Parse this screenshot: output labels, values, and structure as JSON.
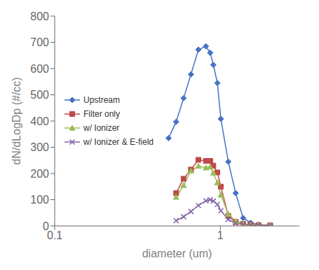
{
  "chart_data": {
    "type": "line",
    "xlabel": "diameter (um)",
    "ylabel": "dN/dLogDp (#/cc)",
    "log": "x",
    "xlim": [
      0.1,
      3.0
    ],
    "xticks": [
      0.1,
      1
    ],
    "ylim": [
      0,
      800
    ],
    "yticks": [
      0,
      100,
      200,
      300,
      400,
      500,
      600,
      700,
      800
    ],
    "grid": false,
    "legend": "left",
    "series": [
      {
        "name": "Upstream",
        "color": "#4472C4",
        "marker": "diamond",
        "x": [
          0.487,
          0.541,
          0.6,
          0.665,
          0.737,
          0.818,
          0.869,
          0.907,
          0.96,
          1.007,
          1.117,
          1.238,
          1.373,
          1.523,
          1.7,
          2.0
        ],
        "values": [
          335,
          397,
          487,
          578,
          672,
          685,
          660,
          614,
          545,
          408,
          245,
          125,
          30,
          12,
          5,
          3
        ]
      },
      {
        "name": "Filter only",
        "color": "#BE4B48",
        "marker": "square",
        "x": [
          0.541,
          0.6,
          0.665,
          0.737,
          0.818,
          0.869,
          0.907,
          0.96,
          1.007,
          1.117,
          1.238,
          1.373,
          1.523,
          1.7,
          2.0
        ],
        "values": [
          125,
          180,
          215,
          252,
          248,
          248,
          230,
          204,
          150,
          38,
          15,
          8,
          5,
          3,
          2
        ]
      },
      {
        "name": "w/ Ionizer",
        "color": "#9BBB59",
        "marker": "triangle",
        "x": [
          0.541,
          0.6,
          0.665,
          0.737,
          0.818,
          0.869,
          0.907,
          0.96,
          1.007,
          1.117,
          1.238,
          1.373,
          1.523,
          1.7,
          2.0
        ],
        "values": [
          110,
          155,
          210,
          228,
          222,
          225,
          202,
          165,
          118,
          45,
          18,
          8,
          4,
          2,
          1
        ]
      },
      {
        "name": "w/ Ionizer & E-field",
        "color": "#8064A2",
        "marker": "x",
        "x": [
          0.541,
          0.6,
          0.665,
          0.737,
          0.818,
          0.869,
          0.907,
          0.96,
          1.007,
          1.117,
          1.238,
          1.373,
          1.523,
          1.7,
          2.0
        ],
        "values": [
          20,
          35,
          55,
          78,
          96,
          100,
          95,
          82,
          58,
          25,
          10,
          5,
          3,
          2,
          1
        ]
      }
    ]
  }
}
